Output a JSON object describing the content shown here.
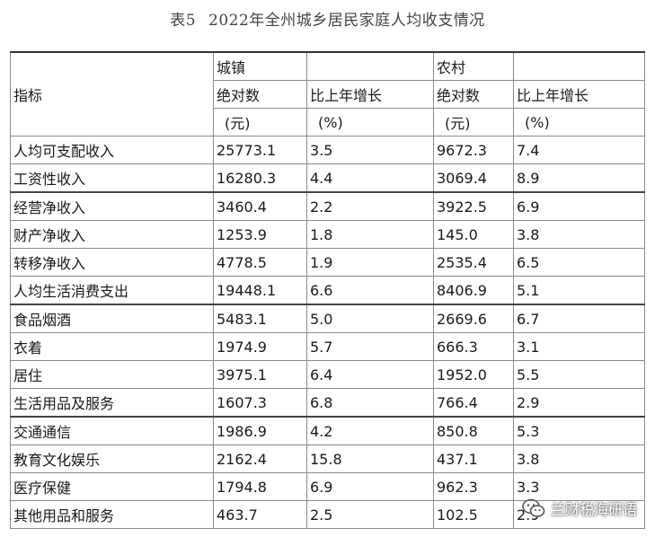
{
  "title": {
    "label": "表5",
    "text": "2022年全州城乡居民家庭人均收支情况"
  },
  "header": {
    "indicator": "指标",
    "urban": "城镇",
    "rural": "农村",
    "absolute": "绝对数",
    "growth": "比上年增长",
    "unit_yuan": "(元)",
    "unit_pct": "(%)"
  },
  "rows": [
    {
      "name": "人均可支配收入",
      "urban_abs": "25773.1",
      "urban_growth": "3.5",
      "rural_abs": "9672.3",
      "rural_growth": "7.4"
    },
    {
      "name": "工资性收入",
      "urban_abs": "16280.3",
      "urban_growth": "4.4",
      "rural_abs": "3069.4",
      "rural_growth": "8.9"
    },
    {
      "name": "经营净收入",
      "urban_abs": "3460.4",
      "urban_growth": "2.2",
      "rural_abs": "3922.5",
      "rural_growth": "6.9"
    },
    {
      "name": "财产净收入",
      "urban_abs": "1253.9",
      "urban_growth": "1.8",
      "rural_abs": "145.0",
      "rural_growth": "3.8"
    },
    {
      "name": "转移净收入",
      "urban_abs": "4778.5",
      "urban_growth": "1.9",
      "rural_abs": "2535.4",
      "rural_growth": "6.5"
    },
    {
      "name": "人均生活消费支出",
      "urban_abs": "19448.1",
      "urban_growth": "6.6",
      "rural_abs": "8406.9",
      "rural_growth": "5.1"
    },
    {
      "name": "食品烟酒",
      "urban_abs": "5483.1",
      "urban_growth": "5.0",
      "rural_abs": "2669.6",
      "rural_growth": "6.7"
    },
    {
      "name": "衣着",
      "urban_abs": "1974.9",
      "urban_growth": "5.7",
      "rural_abs": "666.3",
      "rural_growth": "3.1"
    },
    {
      "name": "居住",
      "urban_abs": "3975.1",
      "urban_growth": "6.4",
      "rural_abs": "1952.0",
      "rural_growth": "5.5"
    },
    {
      "name": "生活用品及服务",
      "urban_abs": "1607.3",
      "urban_growth": "6.8",
      "rural_abs": "766.4",
      "rural_growth": "2.9"
    },
    {
      "name": "交通通信",
      "urban_abs": "1986.9",
      "urban_growth": "4.2",
      "rural_abs": "850.8",
      "rural_growth": "5.3"
    },
    {
      "name": "教育文化娱乐",
      "urban_abs": "2162.4",
      "urban_growth": "15.8",
      "rural_abs": "437.1",
      "rural_growth": "3.8"
    },
    {
      "name": "医疗保健",
      "urban_abs": "1794.8",
      "urban_growth": "6.9",
      "rural_abs": "962.3",
      "rural_growth": "3.3"
    },
    {
      "name": "其他用品和服务",
      "urban_abs": "463.7",
      "urban_growth": "2.5",
      "rural_abs": "102.5",
      "rural_growth": "2.9"
    }
  ],
  "watermark": {
    "text": "兰财税海研语",
    "icon": "wechat-icon"
  }
}
